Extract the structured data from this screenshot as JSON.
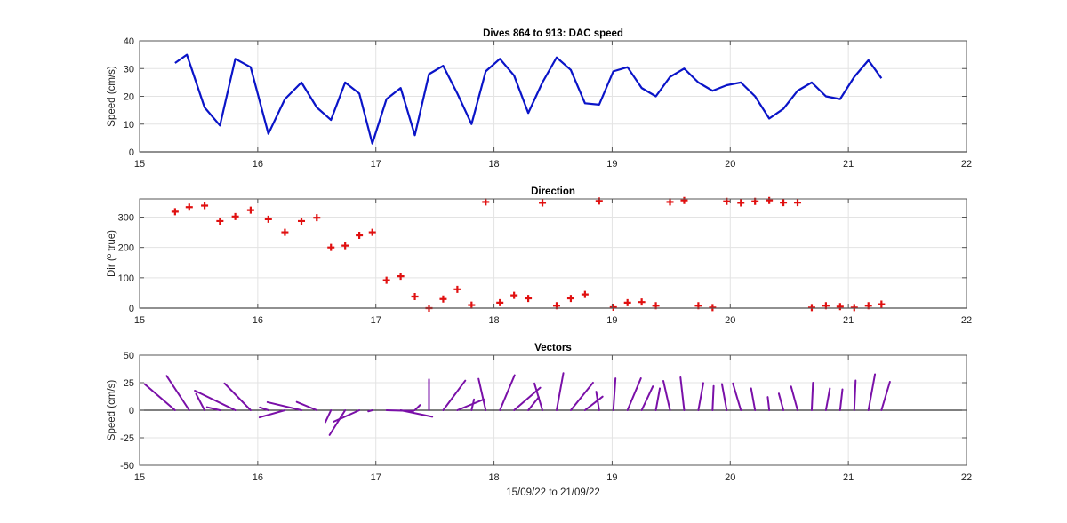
{
  "xlabel": "15/09/22 to 21/09/22",
  "chart_data": [
    {
      "type": "line",
      "title": "Dives 864 to 913: DAC speed",
      "ylabel": "Speed (cm/s)",
      "xlim": [
        15,
        22
      ],
      "ylim": [
        0,
        40
      ],
      "xticks": [
        15,
        16,
        17,
        18,
        19,
        20,
        21,
        22
      ],
      "yticks": [
        0,
        10,
        20,
        30,
        40
      ],
      "grid": true,
      "color": "#0a14c8",
      "series": [
        {
          "x": [
            15.3,
            15.4,
            15.55,
            15.68,
            15.81,
            15.94,
            16.09,
            16.23,
            16.37,
            16.5,
            16.62,
            16.74,
            16.86,
            16.97,
            17.09,
            17.21,
            17.33,
            17.45,
            17.57,
            17.69,
            17.81,
            17.93,
            18.05,
            18.17,
            18.29,
            18.41,
            18.53,
            18.65,
            18.77,
            18.89,
            19.01,
            19.13,
            19.25,
            19.37,
            19.49,
            19.61,
            19.73,
            19.85,
            19.97,
            20.09,
            20.21,
            20.33,
            20.45,
            20.57,
            20.69,
            20.81,
            20.93,
            21.05,
            21.17,
            21.28
          ],
          "y": [
            32,
            35,
            16,
            9.5,
            33.5,
            30.5,
            6.5,
            19,
            25,
            16,
            11.5,
            25,
            21,
            3,
            19,
            23,
            6,
            28,
            31,
            21,
            10,
            29,
            33.5,
            27.5,
            14,
            25,
            34,
            29.5,
            17.5,
            17,
            29,
            30.5,
            23,
            20,
            27,
            30,
            25,
            22,
            24,
            25,
            20,
            12,
            15.5,
            22,
            25,
            20,
            19,
            27,
            33,
            26.5
          ]
        }
      ]
    },
    {
      "type": "scatter",
      "title": "Direction",
      "ylabel": "Dir (o true)",
      "xlim": [
        15,
        22
      ],
      "ylim": [
        0,
        360
      ],
      "xticks": [
        15,
        16,
        17,
        18,
        19,
        20,
        21,
        22
      ],
      "yticks": [
        0,
        100,
        200,
        300
      ],
      "grid": true,
      "marker": "+",
      "color": "#e01010",
      "series": [
        {
          "x": [
            15.3,
            15.42,
            15.55,
            15.68,
            15.81,
            15.94,
            16.09,
            16.23,
            16.37,
            16.5,
            16.62,
            16.74,
            16.86,
            16.97,
            17.09,
            17.21,
            17.33,
            17.45,
            17.57,
            17.69,
            17.81,
            17.93,
            18.05,
            18.17,
            18.29,
            18.41,
            18.53,
            18.65,
            18.77,
            18.89,
            19.01,
            19.13,
            19.25,
            19.37,
            19.49,
            19.61,
            19.73,
            19.85,
            19.97,
            20.09,
            20.21,
            20.33,
            20.45,
            20.57,
            20.69,
            20.81,
            20.93,
            21.05,
            21.17,
            21.28
          ],
          "y": [
            318,
            333,
            338,
            287,
            302,
            323,
            293,
            250,
            287,
            298,
            200,
            206,
            240,
            250,
            92,
            105,
            38,
            0,
            30,
            62,
            10,
            350,
            18,
            42,
            32,
            347,
            8,
            32,
            45,
            353,
            3,
            18,
            20,
            8,
            350,
            355,
            8,
            2,
            352,
            347,
            352,
            355,
            348,
            348,
            2,
            8,
            5,
            2,
            8,
            13
          ]
        }
      ]
    },
    {
      "type": "vector",
      "title": "Vectors",
      "ylabel": "Speed (cm/s)",
      "xlim": [
        15,
        22
      ],
      "ylim": [
        -50,
        50
      ],
      "xticks": [
        15,
        16,
        17,
        18,
        19,
        20,
        21,
        22
      ],
      "yticks": [
        -50,
        -25,
        0,
        25,
        50
      ],
      "grid": true,
      "color": "#7a10a8",
      "x": [
        15.3,
        15.42,
        15.55,
        15.68,
        15.81,
        15.94,
        16.09,
        16.23,
        16.37,
        16.5,
        16.62,
        16.74,
        16.86,
        16.97,
        17.09,
        17.21,
        17.33,
        17.45,
        17.57,
        17.69,
        17.81,
        17.93,
        18.05,
        18.17,
        18.29,
        18.41,
        18.53,
        18.65,
        18.77,
        18.89,
        19.01,
        19.13,
        19.25,
        19.37,
        19.49,
        19.61,
        19.73,
        19.85,
        19.97,
        20.09,
        20.21,
        20.33,
        20.45,
        20.57,
        20.69,
        20.81,
        20.93,
        21.05,
        21.17,
        21.28
      ],
      "speed": [
        32,
        35,
        16,
        9.5,
        33.5,
        30.5,
        6.5,
        19,
        25,
        16,
        11.5,
        25,
        21,
        3,
        19,
        23,
        6,
        28,
        31,
        21,
        10,
        29,
        33.5,
        27.5,
        14,
        25,
        34,
        29.5,
        17.5,
        17,
        29,
        30.5,
        23,
        20,
        27,
        30,
        25,
        22,
        24,
        25,
        20,
        12,
        15.5,
        22,
        25,
        20,
        19,
        27,
        33,
        26.5
      ],
      "direction": [
        318,
        333,
        338,
        287,
        302,
        323,
        293,
        250,
        287,
        298,
        200,
        206,
        240,
        250,
        92,
        105,
        38,
        0,
        30,
        62,
        10,
        350,
        18,
        42,
        32,
        347,
        8,
        32,
        45,
        353,
        3,
        18,
        20,
        8,
        350,
        355,
        8,
        2,
        352,
        347,
        352,
        355,
        348,
        348,
        2,
        8,
        5,
        2,
        8,
        13
      ]
    }
  ]
}
